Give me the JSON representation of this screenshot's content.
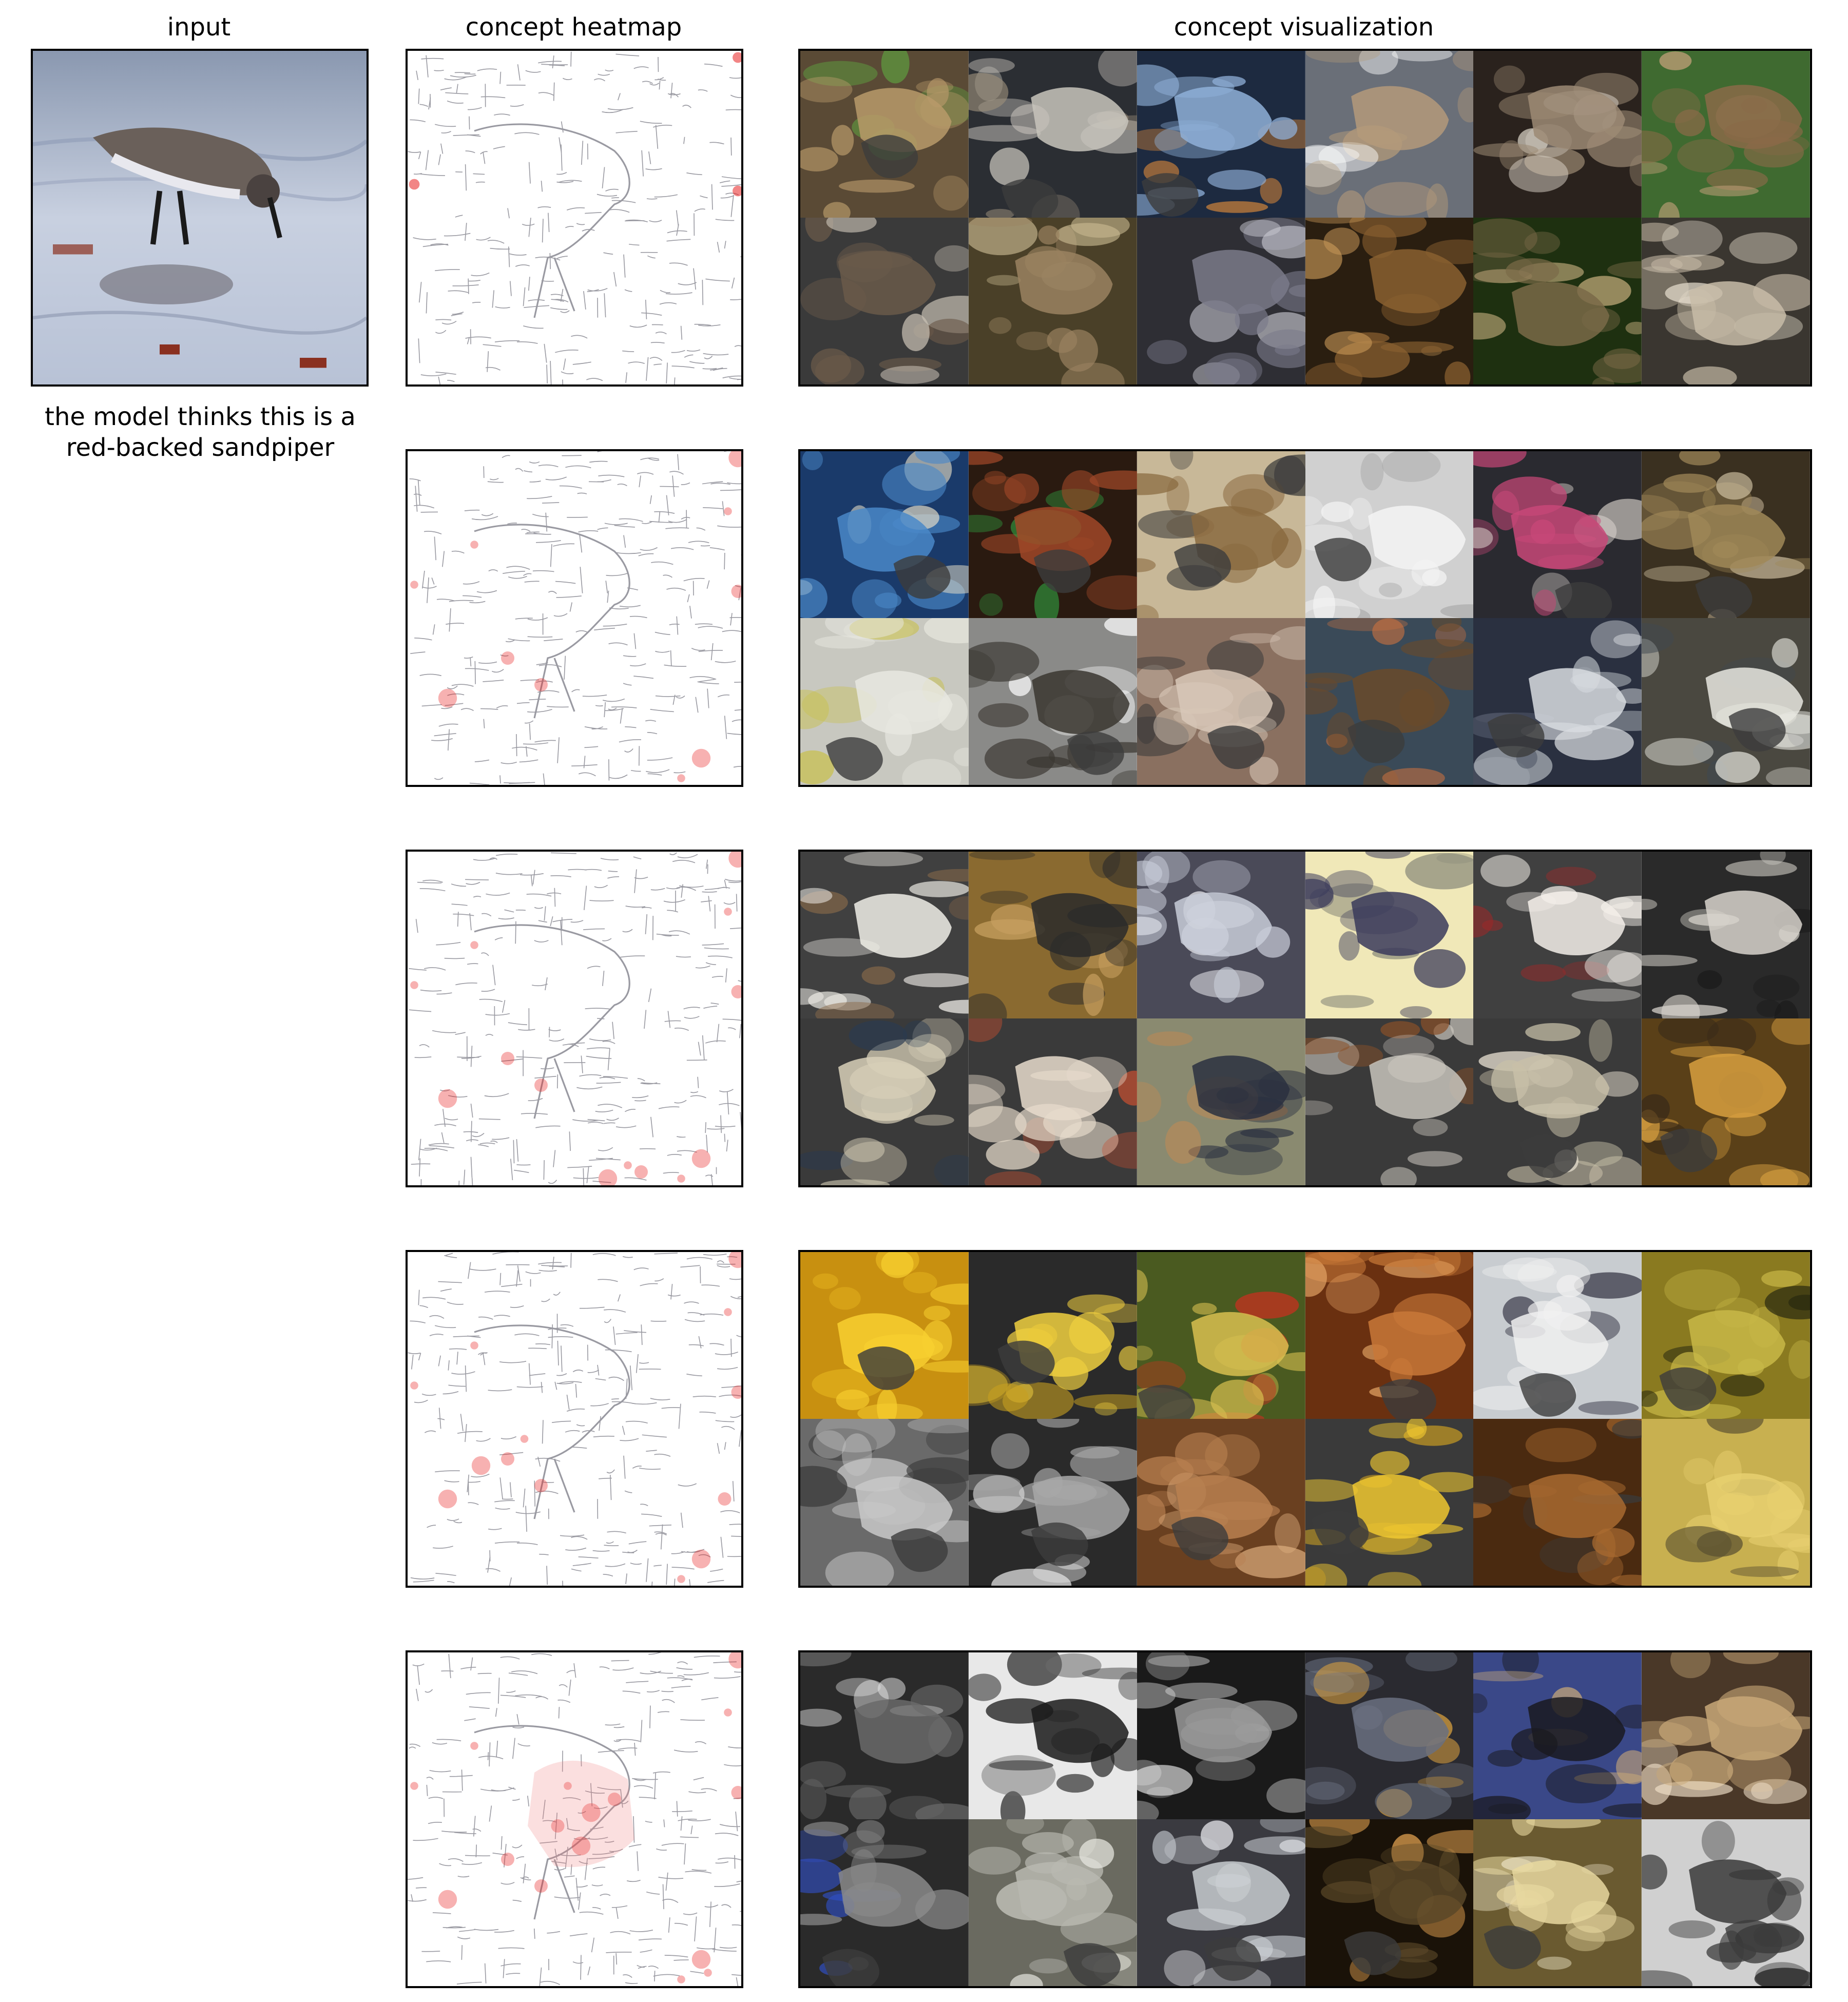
{
  "headers": {
    "input": "input",
    "heatmap": "concept heatmap",
    "visualization": "concept visualization"
  },
  "caption": {
    "line1": "the model thinks this is a",
    "line2": "red-backed sandpiper"
  },
  "rows": [
    {
      "heatmap_icon": "edge-heatmap-sparse",
      "tiles": [
        {
          "icon": "grouse-photo",
          "bg": "#5a4a35",
          "fg": "#b89a6a",
          "accent": "#5fa040"
        },
        {
          "icon": "ptarmigan-photo",
          "bg": "#2b2e33",
          "fg": "#c8c4bc",
          "accent": "#9a8d7a"
        },
        {
          "icon": "shorebirds-photo",
          "bg": "#1d2a40",
          "fg": "#8fb0d8",
          "accent": "#c87f3a"
        },
        {
          "icon": "grouse-photo",
          "bg": "#6a6f78",
          "fg": "#b49a7a",
          "accent": "#ffffff"
        },
        {
          "icon": "sandpiper-photo",
          "bg": "#2a221d",
          "fg": "#9c8a74",
          "accent": "#dcd4c8"
        },
        {
          "icon": "grouse-photo",
          "bg": "#3f6a30",
          "fg": "#8a6a48",
          "accent": "#c4a07a"
        },
        {
          "icon": "bird-photo",
          "bg": "#3a3a3a",
          "fg": "#6a5a4a",
          "accent": "#c8c0b4"
        },
        {
          "icon": "snipe-photo",
          "bg": "#4a4028",
          "fg": "#9a8260",
          "accent": "#c8b890"
        },
        {
          "icon": "sandpiper-photo",
          "bg": "#2e2e34",
          "fg": "#7a7a8a",
          "accent": "#c8c8d0"
        },
        {
          "icon": "quail-photo",
          "bg": "#2a1e10",
          "fg": "#8a6030",
          "accent": "#c89858"
        },
        {
          "icon": "quail-photo",
          "bg": "#1e3010",
          "fg": "#7a6a48",
          "accent": "#c8b080"
        },
        {
          "icon": "sandpiper-photo",
          "bg": "#3a3630",
          "fg": "#c8bca8",
          "accent": "#e8e0d0"
        }
      ]
    },
    {
      "heatmap_icon": "edge-heatmap-medium",
      "tiles": [
        {
          "icon": "pencils-photo",
          "bg": "#1a3a6a",
          "fg": "#4a88c8",
          "accent": "#e8e0c8"
        },
        {
          "icon": "blinds-photo",
          "bg": "#2a1a10",
          "fg": "#a04828",
          "accent": "#30a040"
        },
        {
          "icon": "flutes-photo",
          "bg": "#c8b898",
          "fg": "#8a6a40",
          "accent": "#3a3a3a"
        },
        {
          "icon": "blinds-photo",
          "bg": "#d0d0d0",
          "fg": "#f4f4f4",
          "accent": "#a0a0a0"
        },
        {
          "icon": "cassettes-photo",
          "bg": "#2a2a30",
          "fg": "#c84878",
          "accent": "#e8e0d8"
        },
        {
          "icon": "books-photo",
          "bg": "#3a3020",
          "fg": "#a08858",
          "accent": "#e0d0b0"
        },
        {
          "icon": "ruler-photo",
          "bg": "#c8c8c0",
          "fg": "#e8e8e0",
          "accent": "#c8c048"
        },
        {
          "icon": "duck-photo",
          "bg": "#8a8a88",
          "fg": "#3a3630",
          "accent": "#ffffff"
        },
        {
          "icon": "water-photo",
          "bg": "#8a7060",
          "fg": "#d8c8b8",
          "accent": "#3a3a3a"
        },
        {
          "icon": "duck-photo",
          "bg": "#3a4a58",
          "fg": "#6a4a2a",
          "accent": "#c87040"
        },
        {
          "icon": "van-photo",
          "bg": "#2a3040",
          "fg": "#d8dce0",
          "accent": "#505868"
        },
        {
          "icon": "van-photo",
          "bg": "#4a4840",
          "fg": "#e8e8e0",
          "accent": "#404850"
        }
      ]
    },
    {
      "heatmap_icon": "edge-heatmap-medium",
      "tiles": [
        {
          "icon": "centipede-photo",
          "bg": "#404040",
          "fg": "#f0eee8",
          "accent": "#8a6a4a"
        },
        {
          "icon": "millipede-photo",
          "bg": "#8a6a30",
          "fg": "#2a2a2a",
          "accent": "#c8a060"
        },
        {
          "icon": "lace-photo",
          "bg": "#4a4a58",
          "fg": "#c8ccd8",
          "accent": "#f0f0f4"
        },
        {
          "icon": "letter-photo",
          "bg": "#f0e8b8",
          "fg": "#3a3a5a",
          "accent": "#8a8a7a"
        },
        {
          "icon": "baseball-photo",
          "bg": "#404040",
          "fg": "#f4f0ea",
          "accent": "#a02828"
        },
        {
          "icon": "barometer-photo",
          "bg": "#2a2a2a",
          "fg": "#d8d4cc",
          "accent": "#1a1a1a"
        },
        {
          "icon": "millipede-photo",
          "bg": "#3a3a3a",
          "fg": "#d8d0b8",
          "accent": "#2a3a50"
        },
        {
          "icon": "shrimp-photo",
          "bg": "#3a3a3a",
          "fg": "#e8dccc",
          "accent": "#c85030"
        },
        {
          "icon": "centipede-photo",
          "bg": "#8a8a70",
          "fg": "#2a3040",
          "accent": "#c88a50"
        },
        {
          "icon": "centipede-photo",
          "bg": "#3a3a3a",
          "fg": "#c8c4bc",
          "accent": "#8a5028"
        },
        {
          "icon": "knit-photo",
          "bg": "#3a3a3a",
          "fg": "#c8c0a8",
          "accent": "#f0e8d8"
        },
        {
          "icon": "millipede-photo",
          "bg": "#5a4018",
          "fg": "#d8a040",
          "accent": "#3a2a18"
        }
      ]
    },
    {
      "heatmap_icon": "edge-heatmap-medium",
      "tiles": [
        {
          "icon": "corn-photo",
          "bg": "#c89010",
          "fg": "#f8d030",
          "accent": "#e8b820"
        },
        {
          "icon": "corn-photo",
          "bg": "#2a2a2a",
          "fg": "#f0d040",
          "accent": "#c8a020"
        },
        {
          "icon": "salad-photo",
          "bg": "#4a5a20",
          "fg": "#d8c050",
          "accent": "#c83020"
        },
        {
          "icon": "drawers-photo",
          "bg": "#6a3010",
          "fg": "#c87838",
          "accent": "#e8a868"
        },
        {
          "icon": "table-photo",
          "bg": "#c8ccd0",
          "fg": "#f0f0f0",
          "accent": "#2a2a3a"
        },
        {
          "icon": "board-photo",
          "bg": "#8a7a20",
          "fg": "#c8b848",
          "accent": "#2a2a10"
        },
        {
          "icon": "cabinet-photo",
          "bg": "#6a6a6a",
          "fg": "#c8c8c8",
          "accent": "#3a3a3a"
        },
        {
          "icon": "cabinet-photo",
          "bg": "#2a2a2a",
          "fg": "#a8a8a8",
          "accent": "#e0e0e0"
        },
        {
          "icon": "drawers-photo",
          "bg": "#6a4020",
          "fg": "#b88050",
          "accent": "#e0b080"
        },
        {
          "icon": "corn-photo",
          "bg": "#3a3a3a",
          "fg": "#f0c830",
          "accent": "#d8a820"
        },
        {
          "icon": "drawers-photo",
          "bg": "#4a2a10",
          "fg": "#a86a30",
          "accent": "#3a3a3a"
        },
        {
          "icon": "cabinet-photo",
          "bg": "#c8b050",
          "fg": "#e8d070",
          "accent": "#5a5030"
        }
      ]
    },
    {
      "heatmap_icon": "edge-heatmap-center",
      "tiles": [
        {
          "icon": "keyboard-photo",
          "bg": "#2a2a2a",
          "fg": "#6a6a6a",
          "accent": "#e8e8e8"
        },
        {
          "icon": "chain-photo",
          "bg": "#e8e8e8",
          "fg": "#1a1a1a",
          "accent": "#6a6a6a"
        },
        {
          "icon": "keyboard-photo",
          "bg": "#1a1a1a",
          "fg": "#9a9a9a",
          "accent": "#e8e8e8"
        },
        {
          "icon": "keyboard-photo",
          "bg": "#2a2a30",
          "fg": "#6a7080",
          "accent": "#d8a040"
        },
        {
          "icon": "fence-photo",
          "bg": "#3a4888",
          "fg": "#1a1a20",
          "accent": "#c8a878"
        },
        {
          "icon": "keyboard-photo",
          "bg": "#4a3828",
          "fg": "#c8a878",
          "accent": "#f0e0c8"
        },
        {
          "icon": "keyboard-photo",
          "bg": "#2a2a2a",
          "fg": "#8a8a8a",
          "accent": "#3050c8"
        },
        {
          "icon": "keyboard-photo",
          "bg": "#6a6a60",
          "fg": "#b8b8b0",
          "accent": "#e8e8e0"
        },
        {
          "icon": "keyboard-photo",
          "bg": "#3a3a40",
          "fg": "#c8ccd0",
          "accent": "#f0f0f4"
        },
        {
          "icon": "keyboard-photo",
          "bg": "#1a1208",
          "fg": "#5a4828",
          "accent": "#e0a050"
        },
        {
          "icon": "corn-photo",
          "bg": "#6a5a30",
          "fg": "#e8d8a0",
          "accent": "#f4ecd0"
        },
        {
          "icon": "magnifier-photo",
          "bg": "#d0d0d0",
          "fg": "#3a3a3a",
          "accent": "#1a1a1a"
        }
      ]
    }
  ]
}
